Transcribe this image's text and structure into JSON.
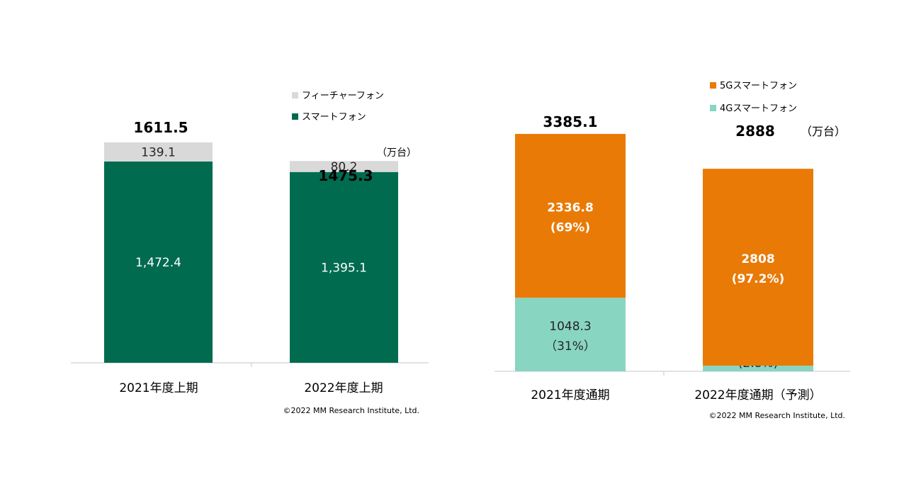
{
  "chart_data": [
    {
      "type": "bar",
      "stacked": true,
      "categories": [
        "2021年度上期",
        "2022年度上期"
      ],
      "series": [
        {
          "name": "スマートフォン",
          "color": "#006B4F",
          "values": [
            1472.4,
            1395.1
          ],
          "labels": [
            "1,472.4",
            "1,395.1"
          ]
        },
        {
          "name": "フィーチャーフォン",
          "color": "#D9D9D9",
          "values": [
            139.1,
            80.2
          ],
          "labels": [
            "139.1",
            "80.2"
          ]
        }
      ],
      "totals": [
        "1611.5",
        "1475.3"
      ],
      "unit": "（万台）",
      "copyright": "©2022 MM Research Institute, Ltd.",
      "legend": "top-right"
    },
    {
      "type": "bar",
      "stacked": true,
      "categories": [
        "2021年度通期",
        "2022年度通期（予測）"
      ],
      "series": [
        {
          "name": "4Gスマートフォン",
          "color": "#88D5C2",
          "values": [
            1048.3,
            80
          ],
          "labels": [
            "1048.3",
            "80"
          ],
          "shares": [
            "（31%）",
            "(2.8%)"
          ]
        },
        {
          "name": "5Gスマートフォン",
          "color": "#E97A06",
          "values": [
            2336.8,
            2808
          ],
          "labels": [
            "2336.8",
            "2808"
          ],
          "shares": [
            "(69%)",
            "(97.2%)"
          ]
        }
      ],
      "totals": [
        "3385.1",
        "2888"
      ],
      "unit": "（万台）",
      "copyright": "©2022 MM Research Institute, Ltd.",
      "legend": "top-right"
    }
  ]
}
